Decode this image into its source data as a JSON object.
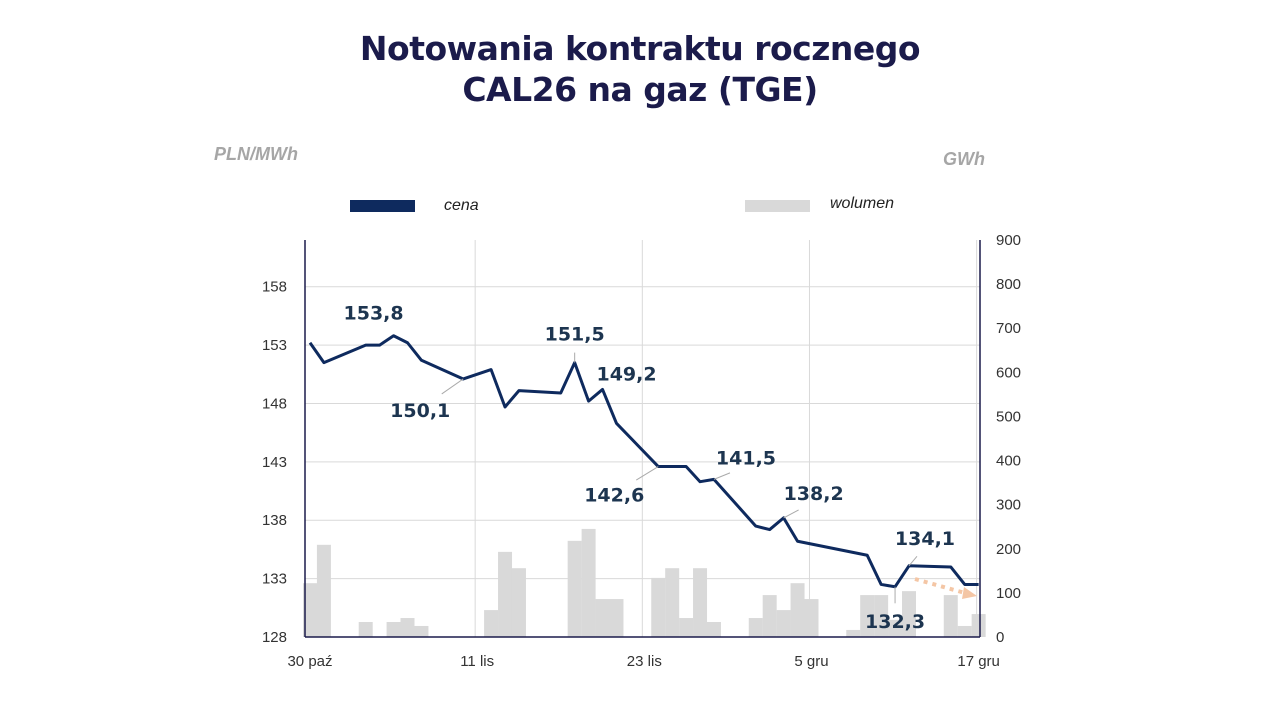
{
  "title_line1": "Notowania kontraktu rocznego",
  "title_line2": "CAL26 na gaz (TGE)",
  "chart_data": {
    "type": "line+bar",
    "title": "Notowania kontraktu rocznego CAL26 na gaz (TGE)",
    "left_axis_label": "PLN/MWh",
    "right_axis_label": "GWh",
    "left_ticks": [
      128,
      133,
      138,
      143,
      148,
      153,
      158
    ],
    "left_range": [
      128,
      162
    ],
    "right_ticks": [
      0,
      100,
      200,
      300,
      400,
      500,
      600,
      700,
      800,
      900
    ],
    "right_range": [
      0,
      900
    ],
    "x_ticks": [
      {
        "day": 0,
        "label": "30 paź"
      },
      {
        "day": 12,
        "label": "11 lis"
      },
      {
        "day": 24,
        "label": "23 lis"
      },
      {
        "day": 36,
        "label": "5 gru"
      },
      {
        "day": 48,
        "label": "17 gru"
      }
    ],
    "x_range": [
      -0.4,
      48.5
    ],
    "legend": [
      {
        "name": "cena",
        "color": "#0e2a5e"
      },
      {
        "name": "wolumen",
        "color": "#d9d9d9"
      }
    ],
    "series": [
      {
        "name": "cena",
        "type": "line",
        "color": "#0e2a5e",
        "points": [
          [
            0,
            153.2
          ],
          [
            1,
            151.5
          ],
          [
            4,
            153.0
          ],
          [
            5,
            153.0
          ],
          [
            6,
            153.8
          ],
          [
            7,
            153.2
          ],
          [
            8,
            151.7
          ],
          [
            11,
            150.1
          ],
          [
            13,
            150.9
          ],
          [
            14,
            147.7
          ],
          [
            15,
            149.1
          ],
          [
            18,
            148.9
          ],
          [
            19,
            151.5
          ],
          [
            20,
            148.2
          ],
          [
            21,
            149.2
          ],
          [
            22,
            146.3
          ],
          [
            25,
            142.6
          ],
          [
            27,
            142.6
          ],
          [
            28,
            141.3
          ],
          [
            29,
            141.5
          ],
          [
            32,
            137.5
          ],
          [
            33,
            137.2
          ],
          [
            34,
            138.2
          ],
          [
            35,
            136.2
          ],
          [
            40,
            135.0
          ],
          [
            41,
            132.5
          ],
          [
            42,
            132.3
          ],
          [
            43,
            134.1
          ],
          [
            46,
            134.0
          ],
          [
            47,
            132.5
          ],
          [
            48,
            132.5
          ]
        ]
      },
      {
        "name": "wolumen",
        "type": "bar",
        "color": "#d9d9d9",
        "points": [
          [
            0,
            122
          ],
          [
            1,
            209
          ],
          [
            4,
            34
          ],
          [
            6,
            34
          ],
          [
            7,
            43
          ],
          [
            8,
            25
          ],
          [
            13,
            61
          ],
          [
            14,
            193
          ],
          [
            15,
            156
          ],
          [
            19,
            218
          ],
          [
            20,
            245
          ],
          [
            21,
            86
          ],
          [
            22,
            86
          ],
          [
            25,
            134
          ],
          [
            26,
            156
          ],
          [
            27,
            43
          ],
          [
            28,
            156
          ],
          [
            29,
            34
          ],
          [
            32,
            43
          ],
          [
            33,
            95
          ],
          [
            34,
            61
          ],
          [
            35,
            122
          ],
          [
            36,
            86
          ],
          [
            39,
            16
          ],
          [
            40,
            95
          ],
          [
            41,
            95
          ],
          [
            42,
            39
          ],
          [
            43,
            104
          ],
          [
            46,
            95
          ],
          [
            47,
            25
          ],
          [
            48,
            52
          ]
        ]
      }
    ],
    "annotations": [
      {
        "label": "153,8",
        "day": 6,
        "value": 153.8
      },
      {
        "label": "150,1",
        "day": 11,
        "value": 150.1
      },
      {
        "label": "151,5",
        "day": 19,
        "value": 151.5
      },
      {
        "label": "149,2",
        "day": 21,
        "value": 149.2
      },
      {
        "label": "142,6",
        "day": 25,
        "value": 142.6
      },
      {
        "label": "141,5",
        "day": 29,
        "value": 141.5
      },
      {
        "label": "138,2",
        "day": 34,
        "value": 138.2
      },
      {
        "label": "134,1",
        "day": 43,
        "value": 134.1
      },
      {
        "label": "132,3",
        "day": 42,
        "value": 132.3
      }
    ],
    "trend_arrow_color": "#f4c6a5"
  }
}
